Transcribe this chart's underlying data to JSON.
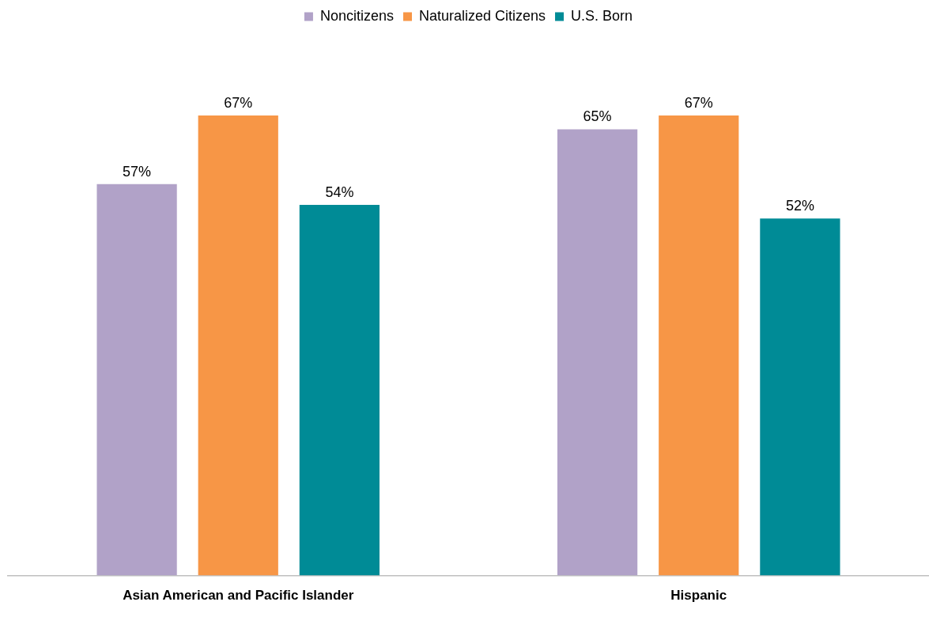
{
  "chart_data": {
    "type": "bar",
    "categories": [
      "Asian American and Pacific Islander",
      "Hispanic"
    ],
    "series": [
      {
        "name": "Noncitizens",
        "color": "#b1a2c8",
        "values": [
          57,
          65
        ],
        "value_labels": [
          "57%",
          "65%"
        ]
      },
      {
        "name": "Naturalized Citizens",
        "color": "#f79646",
        "values": [
          67,
          67
        ],
        "value_labels": [
          "67%",
          "67%"
        ]
      },
      {
        "name": "U.S. Born",
        "color": "#008b96",
        "values": [
          54,
          52
        ],
        "value_labels": [
          "54%",
          "52%"
        ]
      }
    ],
    "legend": "top",
    "grid": false
  }
}
